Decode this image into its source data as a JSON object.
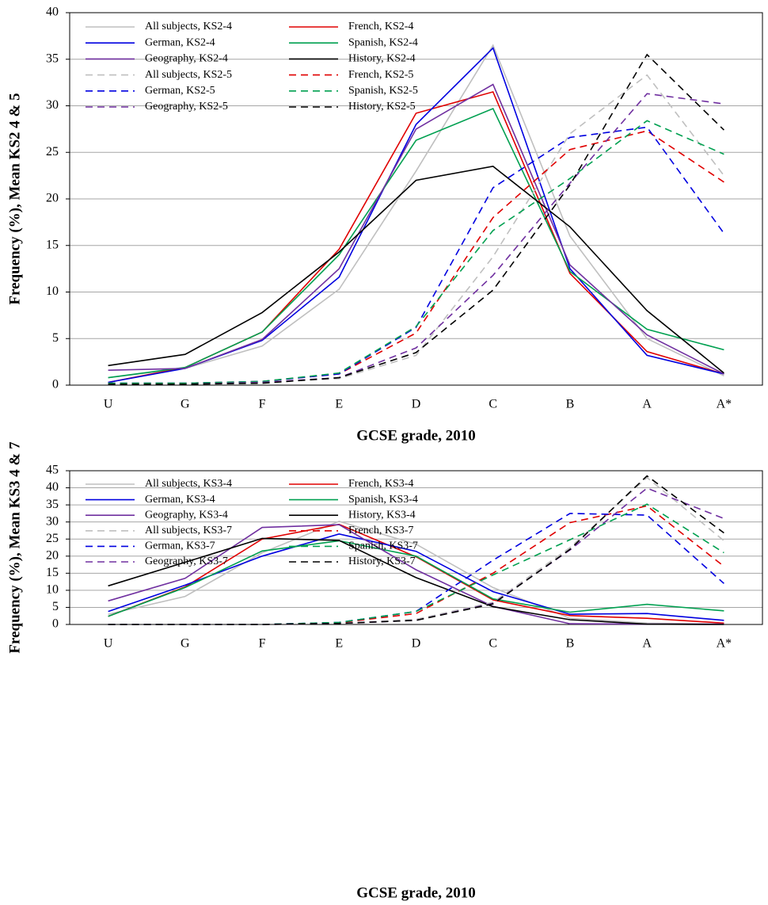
{
  "chart_data": [
    {
      "type": "line",
      "x_label": "GCSE grade, 2010",
      "y_label": "Frequency (%), Mean KS2 4 & 5",
      "categories": [
        "U",
        "G",
        "F",
        "E",
        "D",
        "C",
        "B",
        "A",
        "A*"
      ],
      "ylim": [
        0,
        40
      ],
      "yticks": [
        0,
        5,
        10,
        15,
        20,
        25,
        30,
        35,
        40
      ],
      "grid": true,
      "legend": "upper left",
      "series": [
        {
          "name": "All subjects, KS2-4",
          "color": "#bfbfbf",
          "line_style": "solid",
          "values": [
            0.8,
            1.8,
            4.2,
            10.3,
            23,
            36.5,
            16,
            5,
            1
          ]
        },
        {
          "name": "French, KS2-4",
          "color": "#e00000",
          "line_style": "solid",
          "values": [
            0.3,
            1.9,
            5.7,
            14.6,
            29.2,
            31.5,
            12,
            3.6,
            1.2
          ]
        },
        {
          "name": "German, KS2-4",
          "color": "#0000e0",
          "line_style": "solid",
          "values": [
            0.3,
            1.8,
            4.8,
            11.6,
            28,
            36.2,
            12.5,
            3.2,
            1.2
          ]
        },
        {
          "name": "Spanish, KS2-4",
          "color": "#00a050",
          "line_style": "solid",
          "values": [
            0.8,
            1.9,
            5.7,
            14,
            26.3,
            29.7,
            12.2,
            6,
            3.8
          ]
        },
        {
          "name": "Geography, KS2-4",
          "color": "#7030a0",
          "line_style": "solid",
          "values": [
            1.6,
            1.8,
            4.9,
            12.5,
            27.5,
            32.3,
            12.9,
            5.4,
            1.2
          ]
        },
        {
          "name": "History, KS2-4",
          "color": "#000000",
          "line_style": "solid",
          "values": [
            2.1,
            3.3,
            7.8,
            14.3,
            22,
            23.5,
            17,
            8,
            1.3
          ]
        },
        {
          "name": "All subjects, KS2-5",
          "color": "#bfbfbf",
          "line_style": "dashed",
          "values": [
            0.1,
            0.2,
            0.3,
            0.7,
            3.2,
            13.8,
            27,
            33.3,
            22.5
          ]
        },
        {
          "name": "French, KS2-5",
          "color": "#e00000",
          "line_style": "dashed",
          "values": [
            0.2,
            0.2,
            0.4,
            1.2,
            5.6,
            18,
            25.3,
            27.3,
            21.8
          ]
        },
        {
          "name": "German, KS2-5",
          "color": "#0000e0",
          "line_style": "dashed",
          "values": [
            0.2,
            0.2,
            0.4,
            1.2,
            6.2,
            21.2,
            26.6,
            27.7,
            16.3
          ]
        },
        {
          "name": "Spanish, KS2-5",
          "color": "#00a050",
          "line_style": "dashed",
          "values": [
            0.2,
            0.2,
            0.4,
            1.3,
            6.3,
            16.6,
            22.2,
            28.4,
            24.8
          ]
        },
        {
          "name": "Geography, KS2-5",
          "color": "#7030a0",
          "line_style": "dashed",
          "values": [
            0.1,
            0.1,
            0.3,
            0.8,
            4,
            11.8,
            21.7,
            31.3,
            30.2
          ]
        },
        {
          "name": "History, KS2-5",
          "color": "#000000",
          "line_style": "dashed",
          "values": [
            0.1,
            0.1,
            0.2,
            0.8,
            3.5,
            10.2,
            21.5,
            35.5,
            27.4
          ]
        }
      ]
    },
    {
      "type": "line",
      "x_label": "GCSE grade, 2010",
      "y_label": "Frequency (%), Mean KS3 4 & 7",
      "categories": [
        "U",
        "G",
        "F",
        "E",
        "D",
        "C",
        "B",
        "A",
        "A*"
      ],
      "ylim": [
        0,
        45
      ],
      "yticks": [
        0,
        5,
        10,
        15,
        20,
        25,
        30,
        35,
        40,
        45
      ],
      "grid": true,
      "legend": "upper left",
      "series": [
        {
          "name": "All subjects, KS3-4",
          "color": "#bfbfbf",
          "line_style": "solid",
          "values": [
            3,
            8.2,
            21,
            30.2,
            23.5,
            10.8,
            1.8,
            0.4,
            0.1
          ]
        },
        {
          "name": "French, KS3-4",
          "color": "#e00000",
          "line_style": "solid",
          "values": [
            2.4,
            11,
            25,
            29.3,
            19.8,
            7.2,
            2.6,
            1.8,
            0.4
          ]
        },
        {
          "name": "German, KS3-4",
          "color": "#0000e0",
          "line_style": "solid",
          "values": [
            3.8,
            11.5,
            20,
            26.5,
            21.4,
            9.6,
            3,
            3.2,
            1.2
          ]
        },
        {
          "name": "Spanish, KS3-4",
          "color": "#00a050",
          "line_style": "solid",
          "values": [
            2.4,
            10.8,
            21.5,
            24.5,
            20,
            7.5,
            3.6,
            5.9,
            4
          ]
        },
        {
          "name": "Geography, KS3-4",
          "color": "#7030a0",
          "line_style": "solid",
          "values": [
            6.9,
            13.5,
            28.4,
            29.2,
            16,
            5.3,
            0.2,
            0.1,
            0.1
          ]
        },
        {
          "name": "History, KS3-4",
          "color": "#000000",
          "line_style": "solid",
          "values": [
            11.3,
            18.2,
            25.2,
            24.6,
            13.7,
            5.2,
            1.4,
            0.1,
            0
          ]
        },
        {
          "name": "All subjects, KS3-7",
          "color": "#bfbfbf",
          "line_style": "dashed",
          "values": [
            0,
            0,
            0,
            0.3,
            1.5,
            6.5,
            22.5,
            43,
            24.5
          ]
        },
        {
          "name": "French, KS3-7",
          "color": "#e00000",
          "line_style": "dashed",
          "values": [
            0,
            0,
            0,
            0.5,
            3.2,
            15,
            29.8,
            34.7,
            17
          ]
        },
        {
          "name": "German, KS3-7",
          "color": "#0000e0",
          "line_style": "dashed",
          "values": [
            0,
            0,
            0,
            0.6,
            3.8,
            18.8,
            32.5,
            32,
            12
          ]
        },
        {
          "name": "Spanish, KS3-7",
          "color": "#00a050",
          "line_style": "dashed",
          "values": [
            0,
            0,
            0,
            0.6,
            3.8,
            14.5,
            24.8,
            35.2,
            21
          ]
        },
        {
          "name": "Geography, KS3-7",
          "color": "#7030a0",
          "line_style": "dashed",
          "values": [
            0,
            0,
            0,
            0.3,
            1.2,
            6.2,
            21.8,
            39.9,
            31
          ]
        },
        {
          "name": "History, KS3-7",
          "color": "#000000",
          "line_style": "dashed",
          "values": [
            0,
            0,
            0,
            0.3,
            1.2,
            6,
            22,
            43.5,
            26.8
          ]
        }
      ]
    }
  ]
}
